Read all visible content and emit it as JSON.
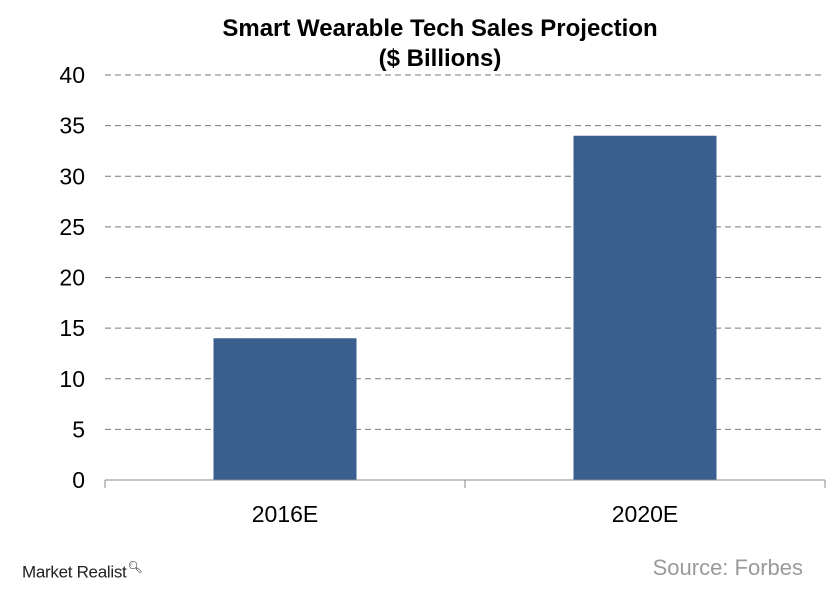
{
  "chart_data": {
    "type": "bar",
    "title": "Smart Wearable Tech Sales Projection",
    "subtitle": "($ Billions)",
    "categories": [
      "2016E",
      "2020E"
    ],
    "series": [
      {
        "values": [
          14,
          34
        ]
      }
    ],
    "ylim": [
      0,
      40
    ],
    "yticks": [
      0,
      5,
      10,
      15,
      20,
      25,
      30,
      35,
      40
    ],
    "xlabel": "",
    "ylabel": "",
    "grid": true,
    "bar_color": "#3a5f8f",
    "grid_color": "#7a7a7a"
  },
  "footer": {
    "brand": "Market Realist",
    "brand_icon": "magnifier-icon",
    "source": "Source: Forbes"
  }
}
